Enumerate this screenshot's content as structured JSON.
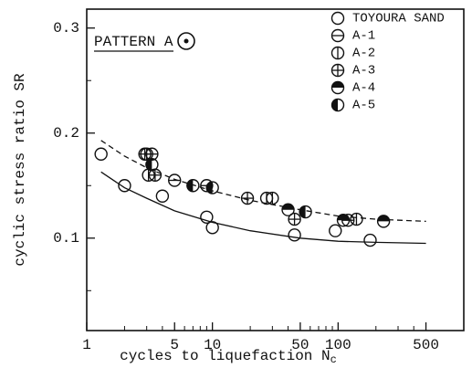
{
  "chart_data": {
    "type": "scatter",
    "x_label": "cycles to liquefaction N",
    "x_label_sub": "c",
    "y_label": "cyclic stress ratio SR",
    "annotation": "PATTERN A",
    "xlog": true,
    "xlim": [
      1,
      1000
    ],
    "ylim": [
      0.012,
      0.318
    ],
    "xticks": [
      1,
      5,
      10,
      50,
      100,
      500
    ],
    "xminorticks": [
      2,
      3,
      4,
      6,
      7,
      8,
      9,
      20,
      30,
      40,
      60,
      70,
      80,
      90,
      200,
      300,
      400
    ],
    "yticks": [
      0.1,
      0.2,
      0.3
    ],
    "yminorticks": [
      0.05,
      0.15,
      0.25
    ],
    "series": [
      {
        "name": "TOYOURA SAND",
        "marker": "open",
        "x": [
          1.3,
          2,
          4,
          9,
          10,
          45,
          95,
          180
        ],
        "values": [
          0.18,
          0.15,
          0.14,
          0.12,
          0.11,
          0.103,
          0.107,
          0.098
        ]
      },
      {
        "name": "A-1",
        "marker": "hline",
        "x": [
          3.3,
          5,
          9,
          120
        ],
        "values": [
          0.18,
          0.155,
          0.15,
          0.117
        ]
      },
      {
        "name": "A-2",
        "marker": "vline",
        "x": [
          3,
          3.1,
          27,
          30,
          140
        ],
        "values": [
          0.18,
          0.16,
          0.138,
          0.138,
          0.118
        ]
      },
      {
        "name": "A-3",
        "marker": "plus",
        "x": [
          2.9,
          3.5,
          19,
          45
        ],
        "values": [
          0.18,
          0.16,
          0.138,
          0.118
        ]
      },
      {
        "name": "A-4",
        "marker": "half-top",
        "x": [
          40,
          110,
          230
        ],
        "values": [
          0.127,
          0.117,
          0.116
        ]
      },
      {
        "name": "A-5",
        "marker": "half-left",
        "x": [
          3.3,
          7,
          10,
          55
        ],
        "values": [
          0.17,
          0.15,
          0.148,
          0.125
        ]
      }
    ],
    "curves": [
      {
        "style": "solid",
        "x": [
          1.3,
          2,
          3,
          5,
          10,
          20,
          50,
          100,
          200,
          500
        ],
        "values": [
          0.163,
          0.148,
          0.138,
          0.126,
          0.115,
          0.107,
          0.1,
          0.097,
          0.096,
          0.095
        ]
      },
      {
        "style": "dashed",
        "x": [
          1.3,
          2,
          3,
          5,
          10,
          20,
          50,
          100,
          200,
          500
        ],
        "values": [
          0.193,
          0.178,
          0.167,
          0.156,
          0.145,
          0.136,
          0.127,
          0.121,
          0.118,
          0.116
        ]
      }
    ]
  }
}
